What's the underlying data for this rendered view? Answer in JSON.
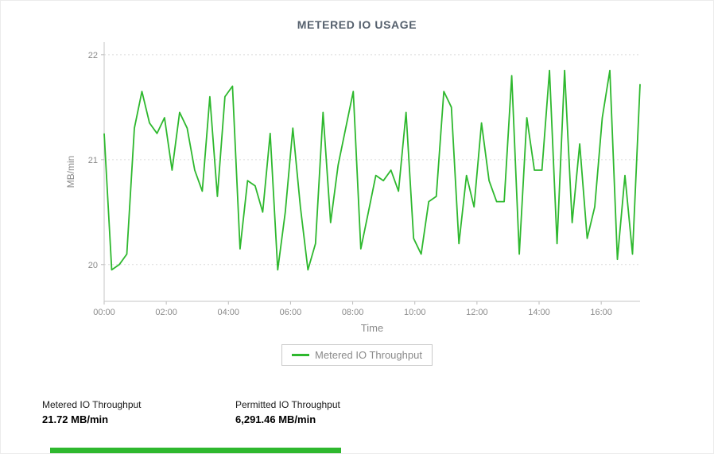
{
  "page": {
    "background": "#ffffff",
    "accent_green": "#2eb82e"
  },
  "chart": {
    "title": "METERED IO USAGE",
    "legend_label": "Metered IO Throughput"
  },
  "chart_data": {
    "type": "line",
    "title": "METERED IO USAGE",
    "xlabel": "Time",
    "ylabel": "MB/min",
    "color": "#2eb82e",
    "grid": "horizontal-dotted",
    "legend_position": "bottom",
    "xlim": [
      0,
      1035
    ],
    "ylim": [
      19.65,
      22.12
    ],
    "yticks": [
      20,
      21,
      22
    ],
    "xticks": [
      {
        "v": 0,
        "label": "00:00"
      },
      {
        "v": 120,
        "label": "02:00"
      },
      {
        "v": 240,
        "label": "04:00"
      },
      {
        "v": 360,
        "label": "06:00"
      },
      {
        "v": 480,
        "label": "08:00"
      },
      {
        "v": 600,
        "label": "10:00"
      },
      {
        "v": 720,
        "label": "12:00"
      },
      {
        "v": 840,
        "label": "14:00"
      },
      {
        "v": 960,
        "label": "16:00"
      }
    ],
    "series": [
      {
        "name": "Metered IO Throughput",
        "values": [
          21.25,
          19.95,
          20.0,
          20.1,
          21.3,
          21.65,
          21.35,
          21.25,
          21.4,
          20.9,
          21.45,
          21.3,
          20.9,
          20.7,
          21.6,
          20.65,
          21.6,
          21.7,
          20.15,
          20.8,
          20.75,
          20.5,
          21.25,
          19.95,
          20.5,
          21.3,
          20.55,
          19.95,
          20.2,
          21.45,
          20.4,
          20.95,
          21.3,
          21.65,
          20.15,
          20.5,
          20.85,
          20.8,
          20.9,
          20.7,
          21.45,
          20.25,
          20.1,
          20.6,
          20.65,
          21.65,
          21.5,
          20.2,
          20.85,
          20.55,
          21.35,
          20.8,
          20.6,
          20.6,
          21.8,
          20.1,
          21.4,
          20.9,
          20.9,
          21.85,
          20.2,
          21.85,
          20.4,
          21.15,
          20.25,
          20.55,
          21.4,
          21.85,
          20.05,
          20.85,
          20.1,
          21.72
        ]
      }
    ]
  },
  "stats": [
    {
      "label": "Metered IO Throughput",
      "value": "21.72 MB/min"
    },
    {
      "label": "Permitted IO Throughput",
      "value": "6,291.46 MB/min"
    }
  ]
}
